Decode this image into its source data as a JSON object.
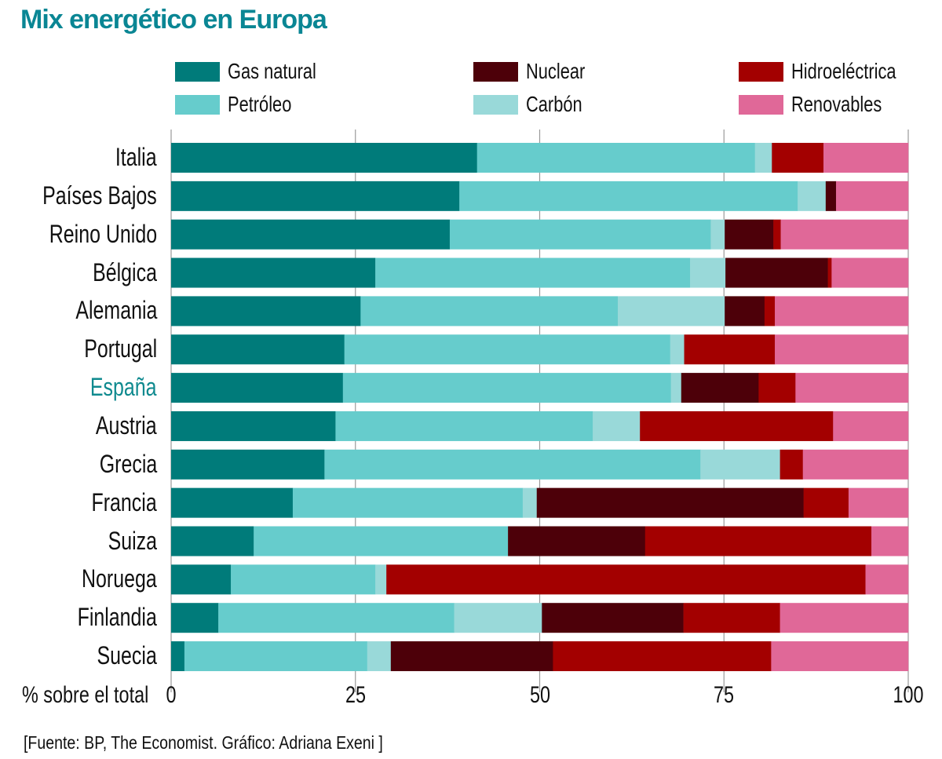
{
  "title": "Mix energético en Europa",
  "source": "[Fuente: BP, The Economist. Gráfico: Adriana Exeni ]",
  "highlight_country": "España",
  "chart_data": {
    "type": "bar",
    "orientation": "horizontal",
    "stacked": true,
    "title": "Mix energético en Europa",
    "xlabel": "% sobre el total",
    "ylabel": "",
    "xlim": [
      0,
      100
    ],
    "xticks": [
      0,
      25,
      50,
      75,
      100
    ],
    "xtick_labels": [
      "0",
      "25",
      "50",
      "75",
      "100"
    ],
    "grid": true,
    "legend_position": "top",
    "categories": [
      "Italia",
      "Países Bajos",
      "Reino Unido",
      "Bélgica",
      "Alemania",
      "Portugal",
      "España",
      "Austria",
      "Grecia",
      "Francia",
      "Suiza",
      "Noruega",
      "Finlandia",
      "Suecia"
    ],
    "series": [
      {
        "name": "Gas natural",
        "color": "#007b7a",
        "values": [
          41.5,
          39.1,
          37.8,
          27.7,
          25.7,
          23.5,
          23.3,
          22.3,
          20.8,
          16.5,
          11.2,
          8.1,
          6.4,
          1.8
        ]
      },
      {
        "name": "Petróleo",
        "color": "#66cccc",
        "values": [
          37.7,
          45.9,
          35.4,
          42.7,
          34.9,
          44.2,
          44.5,
          34.9,
          51.0,
          31.2,
          34.5,
          19.6,
          32.0,
          24.8
        ]
      },
      {
        "name": "Carbón",
        "color": "#99d9d9",
        "values": [
          2.3,
          3.8,
          1.9,
          4.8,
          14.5,
          1.9,
          1.4,
          6.4,
          10.8,
          1.9,
          0.0,
          1.5,
          11.9,
          3.2
        ]
      },
      {
        "name": "Nuclear",
        "color": "#4d0009",
        "values": [
          0.0,
          1.4,
          6.6,
          13.9,
          5.4,
          0.0,
          10.5,
          0.0,
          0.0,
          36.2,
          18.6,
          0.0,
          19.2,
          22.0
        ]
      },
      {
        "name": "Hidroeléctrica",
        "color": "#a30000",
        "values": [
          7.0,
          0.0,
          1.0,
          0.5,
          1.4,
          12.3,
          5.0,
          26.2,
          3.1,
          6.1,
          30.7,
          65.0,
          13.1,
          29.6
        ]
      },
      {
        "name": "Renovables",
        "color": "#e06898",
        "values": [
          11.5,
          9.8,
          17.3,
          10.4,
          18.1,
          18.1,
          15.3,
          10.2,
          14.3,
          8.1,
          5.0,
          5.8,
          17.4,
          18.6
        ]
      }
    ]
  }
}
